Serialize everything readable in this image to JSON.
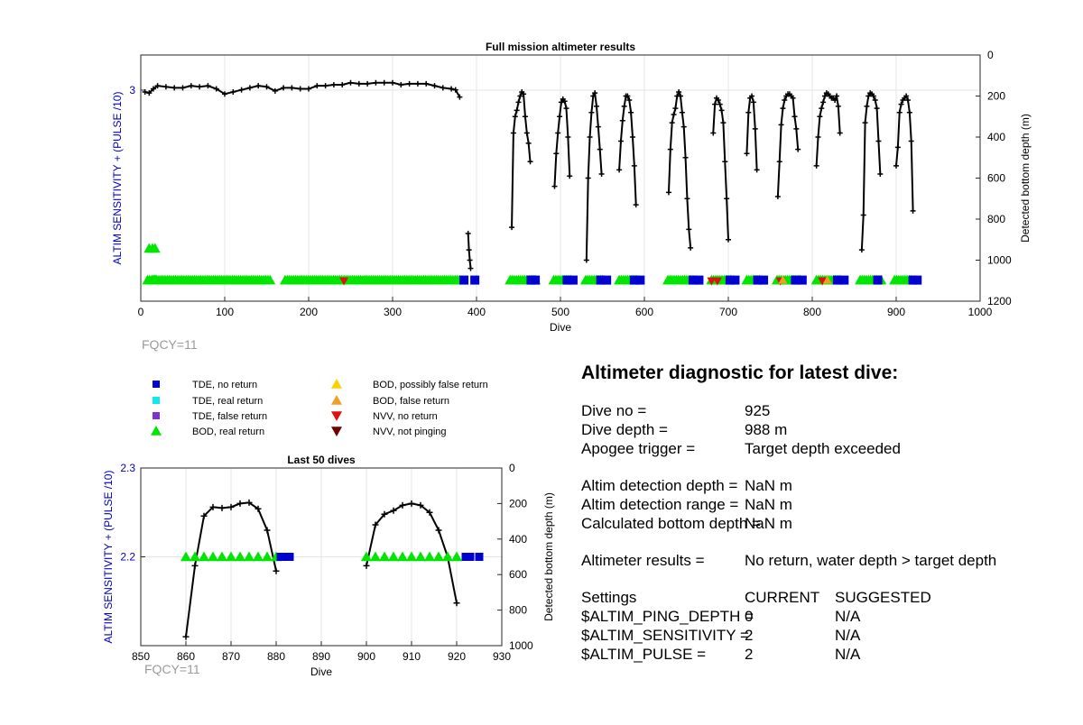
{
  "chart_data": [
    {
      "type": "line",
      "title": "Full mission altimeter results",
      "xlabel": "Dive",
      "ylabel_left": "ALTIM SENSITIVITY + (PULSE /10)",
      "ylabel_right": "Detected bottom depth (m)",
      "xlim": [
        0,
        1000
      ],
      "xticks": [
        0,
        100,
        200,
        300,
        400,
        500,
        600,
        700,
        800,
        900,
        1000
      ],
      "ylim_left": [
        1.8,
        3.2
      ],
      "yticks_left": [
        3
      ],
      "ylim_right": [
        0,
        1200
      ],
      "yticks_right": [
        0,
        200,
        400,
        600,
        800,
        1000,
        1200
      ],
      "right_axis_reversed": true,
      "grid": true,
      "annotation": "FQCY=11",
      "series": [
        {
          "kind": "bottom_depth",
          "color": "#000000",
          "segments": [
            {
              "x": [
                5,
                10,
                15,
                20,
                30,
                40,
                50,
                60,
                70,
                80,
                90,
                100,
                110,
                120,
                130,
                140,
                150,
                160,
                170,
                180,
                190,
                200,
                210,
                220,
                230,
                240,
                250,
                260,
                270,
                280,
                290,
                300,
                310,
                320,
                330,
                340,
                350,
                360,
                370,
                375,
                380
              ],
              "y": [
                180,
                185,
                165,
                150,
                155,
                160,
                160,
                150,
                155,
                150,
                165,
                190,
                180,
                170,
                160,
                150,
                155,
                175,
                160,
                160,
                165,
                165,
                150,
                150,
                145,
                145,
                135,
                140,
                140,
                135,
                135,
                135,
                145,
                140,
                140,
                140,
                150,
                160,
                165,
                170,
                205
              ]
            },
            {
              "x": [
                390,
                391,
                392,
                393
              ],
              "y": [
                870,
                950,
                1000,
                1040
              ]
            },
            {
              "x": [
                442,
                444,
                446,
                448,
                450,
                452,
                454,
                456,
                458,
                460,
                462,
                464
              ],
              "y": [
                840,
                380,
                300,
                270,
                230,
                200,
                180,
                190,
                300,
                380,
                430,
                520
              ]
            },
            {
              "x": [
                493,
                495,
                497,
                499,
                501,
                503,
                505,
                507,
                509,
                511
              ],
              "y": [
                640,
                480,
                380,
                300,
                230,
                215,
                225,
                260,
                400,
                590
              ]
            },
            {
              "x": [
                531,
                533,
                535,
                537,
                539,
                541,
                543,
                545,
                547,
                549
              ],
              "y": [
                1000,
                600,
                400,
                280,
                200,
                185,
                250,
                350,
                460,
                580
              ]
            },
            {
              "x": [
                570,
                572,
                574,
                576,
                578,
                580,
                582,
                584,
                586,
                588,
                590
              ],
              "y": [
                560,
                420,
                320,
                250,
                200,
                200,
                220,
                280,
                400,
                540,
                730
              ]
            },
            {
              "x": [
                629,
                631,
                633,
                635,
                637,
                639,
                641,
                643,
                645,
                647,
                649,
                651,
                653,
                655
              ],
              "y": [
                670,
                460,
                330,
                290,
                260,
                200,
                180,
                200,
                280,
                350,
                500,
                700,
                850,
                940
              ]
            },
            {
              "x": [
                682,
                684,
                686,
                688,
                690,
                692,
                694,
                696,
                698,
                700
              ],
              "y": [
                380,
                240,
                210,
                220,
                240,
                270,
                330,
                520,
                700,
                900
              ]
            },
            {
              "x": [
                722,
                724,
                726,
                728,
                730,
                732,
                734
              ],
              "y": [
                480,
                280,
                210,
                200,
                230,
                360,
                560
              ]
            },
            {
              "x": [
                759,
                761,
                763,
                765,
                767,
                769,
                771,
                773,
                775,
                777,
                779,
                781,
                783
              ],
              "y": [
                690,
                520,
                340,
                260,
                220,
                200,
                190,
                190,
                200,
                210,
                300,
                360,
                460
              ]
            },
            {
              "x": [
                805,
                807,
                809,
                811,
                813,
                815,
                817,
                819,
                821,
                823,
                825,
                827,
                829,
                831,
                833
              ],
              "y": [
                540,
                400,
                300,
                260,
                230,
                200,
                185,
                190,
                200,
                210,
                210,
                220,
                200,
                250,
                380
              ]
            },
            {
              "x": [
                859,
                861,
                863,
                865,
                867,
                869,
                871,
                873,
                875,
                877,
                879,
                881
              ],
              "y": [
                950,
                780,
                330,
                250,
                200,
                185,
                190,
                200,
                220,
                260,
                420,
                580
              ]
            },
            {
              "x": [
                900,
                902,
                904,
                906,
                908,
                910,
                912,
                914,
                916,
                918,
                920
              ],
              "y": [
                540,
                450,
                280,
                240,
                220,
                210,
                200,
                220,
                280,
                420,
                760
              ]
            }
          ]
        },
        {
          "kind": "BOD, real return",
          "color": "#00e600",
          "segments": [
            [
              8,
              20
            ],
            [
              14,
              155
            ],
            [
              172,
              380
            ],
            [
              440,
              470
            ],
            [
              492,
              512
            ],
            [
              530,
              552
            ],
            [
              570,
              592
            ],
            [
              628,
              660
            ],
            [
              680,
              704
            ],
            [
              722,
              738
            ],
            [
              758,
              786
            ],
            [
              805,
              833
            ],
            [
              857,
              882
            ],
            [
              898,
              920
            ]
          ],
          "y_left": 1.92,
          "extra_points": [
            [
              10,
              2.1
            ],
            [
              14,
              2.1
            ],
            [
              17,
              2.1
            ]
          ]
        },
        {
          "kind": "TDE, no return",
          "color": "#0000d0",
          "points": [
            [
              2,
              3.6
            ],
            [
              5,
              3.6
            ],
            [
              8,
              3.6
            ],
            [
              385,
              1.92
            ],
            [
              398,
              1.92
            ],
            [
              465,
              1.92
            ],
            [
              470,
              1.92
            ],
            [
              508,
              1.92
            ],
            [
              515,
              1.92
            ],
            [
              548,
              1.92
            ],
            [
              555,
              1.92
            ],
            [
              588,
              1.92
            ],
            [
              595,
              1.92
            ],
            [
              658,
              1.92
            ],
            [
              665,
              1.92
            ],
            [
              702,
              1.92
            ],
            [
              708,
              1.92
            ],
            [
              735,
              1.92
            ],
            [
              742,
              1.92
            ],
            [
              780,
              1.92
            ],
            [
              788,
              1.92
            ],
            [
              830,
              1.92
            ],
            [
              838,
              1.92
            ],
            [
              878,
              1.92
            ],
            [
              920,
              1.92
            ],
            [
              925,
              1.92
            ]
          ]
        },
        {
          "kind": "NVV, no return",
          "color": "#e01010",
          "points": [
            [
              242,
              1.92
            ],
            [
              680,
              1.92
            ],
            [
              687,
              1.92
            ],
            [
              762,
              1.92
            ],
            [
              812,
              1.92
            ]
          ]
        },
        {
          "kind": "BOD, false return",
          "color": "#f0a020",
          "points": [
            [
              765,
              1.92
            ],
            [
              818,
              1.92
            ]
          ]
        }
      ]
    },
    {
      "type": "line",
      "title": "Last 50 dives",
      "xlabel": "Dive",
      "ylabel_left": "ALTIM SENSITIVITY + (PULSE /10)",
      "ylabel_right": "Detected bottom depth (m)",
      "xlim": [
        850,
        930
      ],
      "xticks": [
        850,
        860,
        870,
        880,
        890,
        900,
        910,
        920,
        930
      ],
      "ylim_left": [
        2.1,
        2.3
      ],
      "yticks_left": [
        2.2,
        2.3
      ],
      "ylim_right": [
        0,
        1000
      ],
      "yticks_right": [
        0,
        200,
        400,
        600,
        800,
        1000
      ],
      "right_axis_reversed": true,
      "grid": true,
      "annotation": "FQCY=11",
      "series": [
        {
          "kind": "bottom_depth",
          "color": "#000000",
          "segments": [
            {
              "x": [
                860,
                862,
                864,
                866,
                868,
                870,
                872,
                874,
                876,
                878,
                880
              ],
              "y": [
                950,
                550,
                270,
                220,
                225,
                220,
                200,
                195,
                230,
                350,
                580
              ]
            },
            {
              "x": [
                900,
                902,
                904,
                906,
                908,
                910,
                912,
                914,
                916,
                918,
                920
              ],
              "y": [
                550,
                320,
                260,
                240,
                210,
                200,
                210,
                250,
                350,
                500,
                760
              ]
            }
          ]
        },
        {
          "kind": "BOD, real return",
          "color": "#00e600",
          "points_x": [
            860,
            862,
            864,
            866,
            868,
            870,
            872,
            874,
            876,
            878,
            880,
            900,
            902,
            904,
            906,
            908,
            910,
            912,
            914,
            916,
            918,
            920
          ],
          "y_left": 2.2
        },
        {
          "kind": "TDE, no return",
          "color": "#0000d0",
          "points_x": [
            881,
            882,
            883,
            922,
            923,
            925
          ],
          "y_left": 2.2
        }
      ]
    }
  ],
  "legend": {
    "col1": [
      {
        "label": "TDE, no return",
        "marker": "square",
        "color": "#0000d0"
      },
      {
        "label": "TDE, real return",
        "marker": "square",
        "color": "#10e8f0"
      },
      {
        "label": "TDE, false return",
        "marker": "square",
        "color": "#8030d0"
      },
      {
        "label": "BOD, real return",
        "marker": "triangle-up",
        "color": "#00e600"
      }
    ],
    "col2": [
      {
        "label": "BOD, possibly false return",
        "marker": "triangle-up",
        "color": "#ffd000"
      },
      {
        "label": "BOD, false return",
        "marker": "triangle-up",
        "color": "#f0a020"
      },
      {
        "label": "NVV, no return",
        "marker": "triangle-down",
        "color": "#e01010"
      },
      {
        "label": "NVV, not pinging",
        "marker": "triangle-down",
        "color": "#700000"
      }
    ]
  },
  "diagnostic": {
    "title": "Altimeter diagnostic for latest dive:",
    "rows": [
      {
        "label": "Dive no =",
        "value": "925"
      },
      {
        "label": "Dive depth =",
        "value": "988 m"
      },
      {
        "label": "Apogee trigger =",
        "value": "Target depth exceeded"
      },
      {
        "label": "Altim detection depth =",
        "value": "NaN m"
      },
      {
        "label": "Altim detection range =",
        "value": "NaN m"
      },
      {
        "label": "Calculated bottom depth =",
        "value": "NaN m"
      },
      {
        "label": "Altimeter results =",
        "value": "No return, water depth > target depth"
      }
    ],
    "settings_header": {
      "label": "Settings",
      "current": "CURRENT",
      "suggested": "SUGGESTED"
    },
    "settings": [
      {
        "label": "$ALTIM_PING_DEPTH =",
        "current": "0",
        "suggested": "N/A"
      },
      {
        "label": "$ALTIM_SENSITIVITY =",
        "current": "2",
        "suggested": "N/A"
      },
      {
        "label": "$ALTIM_PULSE =",
        "current": "2",
        "suggested": "N/A"
      }
    ]
  }
}
